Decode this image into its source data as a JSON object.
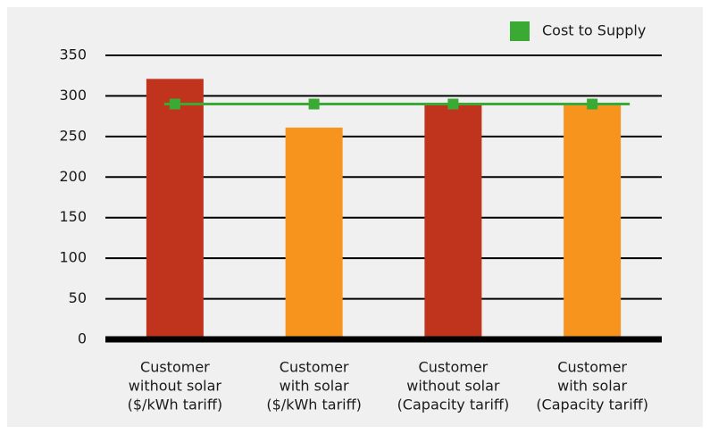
{
  "chart_data": {
    "type": "bar",
    "categories": [
      [
        "Customer",
        "without solar",
        "($/kWh tariff)"
      ],
      [
        "Customer",
        "with solar",
        "($/kWh tariff)"
      ],
      [
        "Customer",
        "without solar",
        "(Capacity tariff)"
      ],
      [
        "Customer",
        "with solar",
        "(Capacity tariff)"
      ]
    ],
    "values": [
      321,
      261,
      290,
      290
    ],
    "colors": [
      "#c0341d",
      "#f7941d",
      "#c0341d",
      "#f7941d"
    ],
    "series": [
      {
        "name": "Cost to Supply",
        "color": "#3aaa35",
        "values": [
          290,
          290,
          290,
          290
        ]
      }
    ],
    "ylim": [
      0,
      350
    ],
    "yticks": [
      0,
      50,
      100,
      150,
      200,
      250,
      300,
      350
    ],
    "grid": true,
    "legend": "top-right"
  }
}
